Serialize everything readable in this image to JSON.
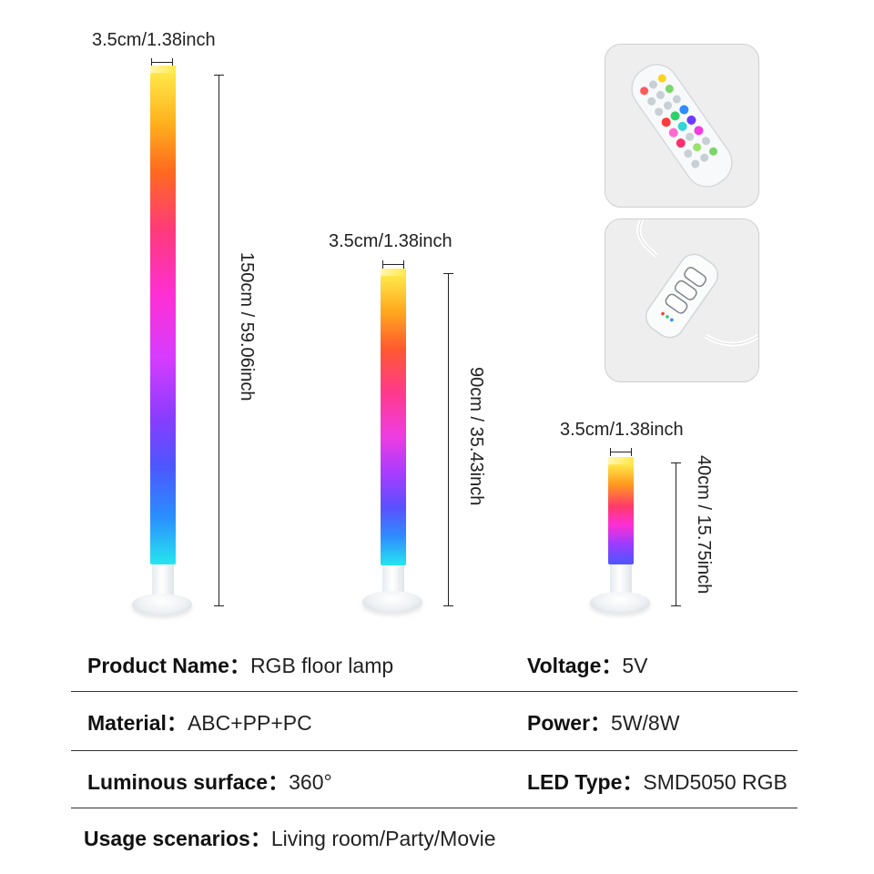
{
  "dimensions": {
    "tall": {
      "width_label": "3.5cm/1.38inch",
      "height_label": "150cm / 59.06inch"
    },
    "mid": {
      "width_label": "3.5cm/1.38inch",
      "height_label": "90cm / 35.43inch"
    },
    "short": {
      "width_label": "3.5cm/1.38inch",
      "height_label": "40cm / 15.75inch"
    }
  },
  "specs": {
    "product_name": {
      "label": "Product Name：",
      "value": "RGB floor lamp"
    },
    "voltage": {
      "label": "Voltage：",
      "value": "5V"
    },
    "material": {
      "label": "Material：",
      "value": "ABC+PP+PC"
    },
    "power": {
      "label": "Power：",
      "value": "5W/8W"
    },
    "luminous_surface": {
      "label": "Luminous surface：",
      "value": "360°"
    },
    "led_type": {
      "label": "LED Type：",
      "value": "SMD5050 RGB"
    },
    "usage": {
      "label": "Usage scenarios：",
      "value": "Living room/Party/Movie"
    }
  },
  "icons": [
    "remote-control-icon",
    "inline-controller-icon"
  ]
}
